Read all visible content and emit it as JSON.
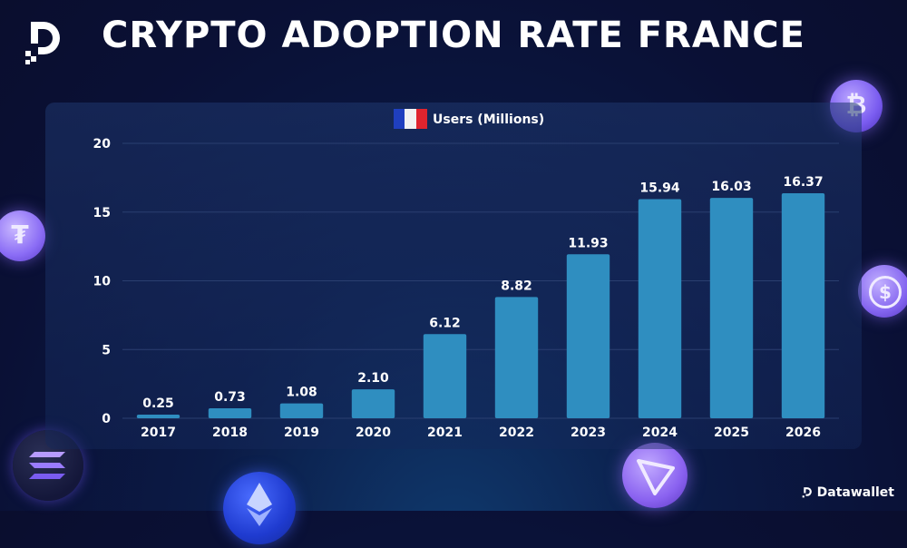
{
  "header": {
    "title": "CRYPTO ADOPTION RATE FRANCE"
  },
  "brand": {
    "name": "Datawallet"
  },
  "colors": {
    "bar": "#2f8ec0",
    "background": "#0a1035",
    "grid": "#2a3f70",
    "text": "#ffffff"
  },
  "icons": [
    "datawallet-logo-icon",
    "bitcoin-coin-icon",
    "tether-coin-icon",
    "usdc-coin-icon",
    "solana-coin-icon",
    "ethereum-coin-icon",
    "tron-coin-icon",
    "france-flag-icon"
  ],
  "chart_data": {
    "type": "bar",
    "legend": "Users (Millions)",
    "legend_placement": "top-center",
    "categories": [
      "2017",
      "2018",
      "2019",
      "2020",
      "2021",
      "2022",
      "2023",
      "2024",
      "2025",
      "2026"
    ],
    "values": [
      0.25,
      0.73,
      1.08,
      2.1,
      6.12,
      8.82,
      11.93,
      15.94,
      16.03,
      16.37
    ],
    "value_labels": [
      "0.25",
      "0.73",
      "1.08",
      "2.10",
      "6.12",
      "8.82",
      "11.93",
      "15.94",
      "16.03",
      "16.37"
    ],
    "ylim": [
      0,
      20
    ],
    "yticks": [
      "0",
      "5",
      "10",
      "15",
      "20"
    ],
    "grid": true
  }
}
